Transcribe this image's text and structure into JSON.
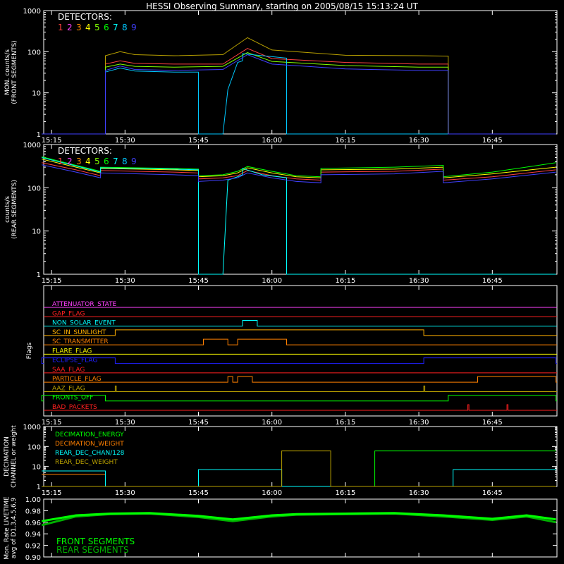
{
  "title": "HESSI Observing Summary, starting on 2005/08/15 15:13:24 UT",
  "time_ticks": [
    "15:15",
    "15:30",
    "15:45",
    "16:00",
    "16:15",
    "16:30",
    "16:45"
  ],
  "detector_colors": [
    "#ff4040",
    "#ff40ff",
    "#ff8c00",
    "#ffff00",
    "#80ff00",
    "#00ff00",
    "#00ffff",
    "#00c8ff",
    "#4040ff"
  ],
  "chart_data": [
    {
      "type": "line",
      "title": "",
      "ylabel": "MON. counts/s (FRONT SEGMENTS)",
      "yscale": "log",
      "ylim": [
        1,
        1000
      ],
      "yticks": [
        "1",
        "10",
        "100",
        "1000"
      ],
      "legend": {
        "title": "DETECTORS:",
        "labels": [
          "1",
          "2",
          "3",
          "4",
          "5",
          "6",
          "7",
          "8",
          "9"
        ]
      },
      "x_unit": "UT",
      "series": [
        {
          "name": "1",
          "color": "#ff4040",
          "x": [
            "15:13",
            "15:26",
            "15:26",
            "15:29",
            "15:32",
            "15:40",
            "15:50",
            "15:55",
            "16:00",
            "16:15",
            "16:30",
            "16:36",
            "16:36",
            "16:58"
          ],
          "y": [
            1,
            1,
            50,
            60,
            52,
            50,
            50,
            120,
            68,
            55,
            50,
            50,
            1,
            1
          ]
        },
        {
          "name": "4",
          "color": "#b8a000",
          "x": [
            "15:13",
            "15:26",
            "15:26",
            "15:29",
            "15:32",
            "15:40",
            "15:50",
            "15:55",
            "16:00",
            "16:15",
            "16:30",
            "16:36",
            "16:36",
            "16:58"
          ],
          "y": [
            1,
            1,
            80,
            100,
            85,
            80,
            85,
            220,
            110,
            82,
            80,
            78,
            1,
            1
          ]
        },
        {
          "name": "5",
          "color": "#80ff00",
          "x": [
            "15:13",
            "15:26",
            "15:26",
            "15:29",
            "15:32",
            "15:40",
            "15:50",
            "15:55",
            "16:00",
            "16:15",
            "16:30",
            "16:36",
            "16:36",
            "16:58"
          ],
          "y": [
            1,
            1,
            42,
            50,
            44,
            42,
            44,
            95,
            58,
            46,
            42,
            42,
            1,
            1
          ]
        },
        {
          "name": "8",
          "color": "#00c8ff",
          "x": [
            "15:13",
            "15:26",
            "15:26",
            "15:29",
            "15:32",
            "15:40",
            "15:45",
            "15:45",
            "15:50",
            "15:51",
            "15:53",
            "15:54",
            "15:54",
            "15:58",
            "16:03",
            "16:03",
            "16:15",
            "16:30",
            "16:36",
            "16:36",
            "16:58"
          ],
          "y": [
            1,
            1,
            32,
            40,
            34,
            32,
            32,
            1,
            1,
            12,
            55,
            60,
            90,
            80,
            70,
            1,
            1,
            1,
            1,
            1,
            1
          ]
        },
        {
          "name": "9",
          "color": "#4040ff",
          "x": [
            "15:13",
            "15:26",
            "15:26",
            "15:29",
            "15:32",
            "15:40",
            "15:50",
            "15:55",
            "16:00",
            "16:15",
            "16:30",
            "16:36",
            "16:36",
            "16:58"
          ],
          "y": [
            1,
            1,
            35,
            45,
            37,
            35,
            37,
            85,
            50,
            38,
            35,
            35,
            1,
            1
          ]
        }
      ]
    },
    {
      "type": "line",
      "title": "",
      "ylabel": "counts/s (REAR SEGMENTS)",
      "yscale": "log",
      "ylim": [
        1,
        1000
      ],
      "yticks": [
        "1",
        "10",
        "100",
        "1000"
      ],
      "legend": {
        "title": "DETECTORS:",
        "labels": [
          "1",
          "2",
          "3",
          "4",
          "5",
          "6",
          "7",
          "8",
          "9"
        ]
      },
      "x_unit": "UT",
      "series": [
        {
          "name": "1",
          "color": "#ff4040",
          "x": [
            "15:13",
            "15:20",
            "15:25",
            "15:25",
            "15:40",
            "15:45",
            "15:45",
            "15:50",
            "15:53",
            "15:55",
            "16:00",
            "16:05",
            "16:10",
            "16:10",
            "16:25",
            "16:35",
            "16:35",
            "16:45",
            "16:58"
          ],
          "y": [
            380,
            260,
            190,
            250,
            230,
            220,
            160,
            170,
            190,
            250,
            190,
            160,
            150,
            230,
            240,
            270,
            150,
            180,
            260
          ]
        },
        {
          "name": "4",
          "color": "#ffff00",
          "x": [
            "15:13",
            "15:20",
            "15:25",
            "15:25",
            "15:40",
            "15:45",
            "15:45",
            "15:50",
            "15:53",
            "15:55",
            "16:00",
            "16:05",
            "16:10",
            "16:10",
            "16:25",
            "16:35",
            "16:35",
            "16:45",
            "16:58"
          ],
          "y": [
            460,
            300,
            220,
            280,
            260,
            250,
            180,
            190,
            220,
            290,
            220,
            180,
            170,
            260,
            270,
            300,
            170,
            210,
            300
          ]
        },
        {
          "name": "7",
          "color": "#00ff00",
          "x": [
            "15:13",
            "15:20",
            "15:25",
            "15:25",
            "15:40",
            "15:45",
            "15:45",
            "15:50",
            "15:53",
            "15:55",
            "16:00",
            "16:05",
            "16:10",
            "16:10",
            "16:25",
            "16:35",
            "16:35",
            "16:45",
            "16:58"
          ],
          "y": [
            520,
            330,
            240,
            300,
            280,
            270,
            190,
            200,
            240,
            310,
            240,
            190,
            180,
            280,
            300,
            330,
            180,
            230,
            380
          ]
        },
        {
          "name": "8",
          "color": "#00ffff",
          "x": [
            "15:13",
            "15:20",
            "15:25",
            "15:25",
            "15:40",
            "15:45",
            "15:45",
            "15:50",
            "15:51",
            "15:53",
            "15:54",
            "15:54",
            "15:58",
            "16:03",
            "16:03",
            "16:58"
          ],
          "y": [
            500,
            320,
            230,
            290,
            270,
            260,
            1,
            1,
            150,
            180,
            200,
            280,
            200,
            170,
            1,
            1
          ]
        },
        {
          "name": "9",
          "color": "#4040ff",
          "x": [
            "15:13",
            "15:20",
            "15:25",
            "15:25",
            "15:40",
            "15:45",
            "15:45",
            "15:50",
            "15:53",
            "15:55",
            "16:00",
            "16:05",
            "16:10",
            "16:10",
            "16:25",
            "16:35",
            "16:35",
            "16:45",
            "16:58"
          ],
          "y": [
            340,
            230,
            170,
            220,
            200,
            190,
            140,
            150,
            170,
            220,
            170,
            140,
            130,
            200,
            210,
            240,
            130,
            160,
            230
          ]
        }
      ]
    },
    {
      "type": "line",
      "title": "",
      "ylabel": "Flags",
      "flags": [
        {
          "name": "ATTENUATOR_STATE",
          "color": "#ff40ff",
          "transitions": []
        },
        {
          "name": "GAP_FLAG",
          "color": "#ff2020",
          "transitions": []
        },
        {
          "name": "NON_SOLAR_EVENT",
          "color": "#00ffff",
          "on_intervals": [
            [
              "15:54",
              "15:57"
            ]
          ]
        },
        {
          "name": "SC_IN_SUNLIGHT",
          "color": "#ffb000",
          "on_intervals": [
            [
              "15:28",
              "16:31"
            ]
          ]
        },
        {
          "name": "SC_TRANSMITTER",
          "color": "#ff8000",
          "on_intervals": [
            [
              "15:46",
              "15:51"
            ],
            [
              "15:53",
              "16:03"
            ]
          ]
        },
        {
          "name": "FLARE_FLAG",
          "color": "#ffff00",
          "on_intervals": []
        },
        {
          "name": "ECLIPSE_FLAG",
          "color": "#2020ff",
          "on_intervals": [
            [
              "15:13",
              "15:28"
            ],
            [
              "16:31",
              "16:58"
            ]
          ]
        },
        {
          "name": "SAA_FLAG",
          "color": "#ff2020",
          "on_intervals": []
        },
        {
          "name": "PARTICLE_FLAG",
          "color": "#ff8000",
          "on_intervals": [
            [
              "15:51",
              "15:52"
            ],
            [
              "15:53",
              "15:56"
            ],
            [
              "16:42",
              "16:58"
            ]
          ]
        },
        {
          "name": "AAZ_FLAG",
          "color": "#b8a000",
          "on_intervals": [
            [
              "15:28",
              "15:28"
            ],
            [
              "16:31",
              "16:31"
            ]
          ]
        },
        {
          "name": "FRONTS_OFF",
          "color": "#00ff00",
          "on_intervals": [
            [
              "15:13",
              "15:26"
            ],
            [
              "16:36",
              "16:58"
            ]
          ]
        },
        {
          "name": "BAD_PACKETS",
          "color": "#ff2020",
          "on_intervals": [
            [
              "16:40",
              "16:40"
            ],
            [
              "16:48",
              "16:48"
            ]
          ]
        }
      ]
    },
    {
      "type": "line",
      "title": "",
      "ylabel": "DECIMATION CHANNEL or weight",
      "yscale": "log",
      "ylim": [
        1,
        1000
      ],
      "yticks": [
        "1",
        "10",
        "100",
        "1000"
      ],
      "series": [
        {
          "name": "DECIMATION_ENERGY",
          "color": "#00ff00",
          "x": [
            "15:13",
            "15:26",
            "15:26",
            "15:45",
            "15:45",
            "16:02",
            "16:02",
            "16:21",
            "16:21",
            "16:58"
          ],
          "y": [
            1,
            1,
            1,
            1,
            1,
            1,
            1,
            1,
            60,
            60
          ]
        },
        {
          "name": "DECIMATION_WEIGHT",
          "color": "#ff8000",
          "x": [
            "15:13",
            "15:26",
            "15:26",
            "16:21",
            "16:21",
            "16:58"
          ],
          "y": [
            4,
            4,
            1,
            1,
            1,
            1
          ]
        },
        {
          "name": "REAR_DEC_CHAN/128",
          "color": "#00ffff",
          "x": [
            "15:13",
            "15:26",
            "15:26",
            "15:45",
            "15:45",
            "16:02",
            "16:02",
            "16:37",
            "16:37",
            "16:58"
          ],
          "y": [
            6,
            6,
            1,
            1,
            7,
            7,
            1,
            1,
            7,
            7
          ]
        },
        {
          "name": "REAR_DEC_WEIGHT",
          "color": "#b8a000",
          "x": [
            "15:13",
            "15:26",
            "15:26",
            "16:02",
            "16:02",
            "16:12",
            "16:12",
            "16:58"
          ],
          "y": [
            1,
            1,
            1,
            1,
            60,
            60,
            1,
            1
          ]
        }
      ]
    },
    {
      "type": "line",
      "title": "",
      "ylabel": "Mon. Rate LIVETIME avg of D1,3,4,5,6,9",
      "ylim": [
        0.9,
        1.0
      ],
      "yticks": [
        "0.90",
        "0.92",
        "0.94",
        "0.96",
        "0.98",
        "1.00"
      ],
      "series": [
        {
          "name": "FRONT SEGMENTS",
          "color": "#00ff00",
          "x": [
            "15:13",
            "15:20",
            "15:27",
            "15:35",
            "15:45",
            "15:52",
            "16:00",
            "16:05",
            "16:15",
            "16:25",
            "16:35",
            "16:45",
            "16:52",
            "16:58"
          ],
          "y": [
            0.962,
            0.972,
            0.975,
            0.976,
            0.971,
            0.965,
            0.972,
            0.974,
            0.975,
            0.976,
            0.972,
            0.966,
            0.972,
            0.965
          ]
        },
        {
          "name": "REAR SEGMENTS",
          "color": "#00b000",
          "x": [
            "15:13",
            "15:20",
            "15:27",
            "15:35",
            "15:45",
            "15:52",
            "16:00",
            "16:05",
            "16:15",
            "16:25",
            "16:35",
            "16:45",
            "16:52",
            "16:58"
          ],
          "y": [
            0.955,
            0.97,
            0.974,
            0.975,
            0.969,
            0.962,
            0.97,
            0.973,
            0.974,
            0.975,
            0.97,
            0.964,
            0.97,
            0.96
          ]
        }
      ]
    }
  ]
}
